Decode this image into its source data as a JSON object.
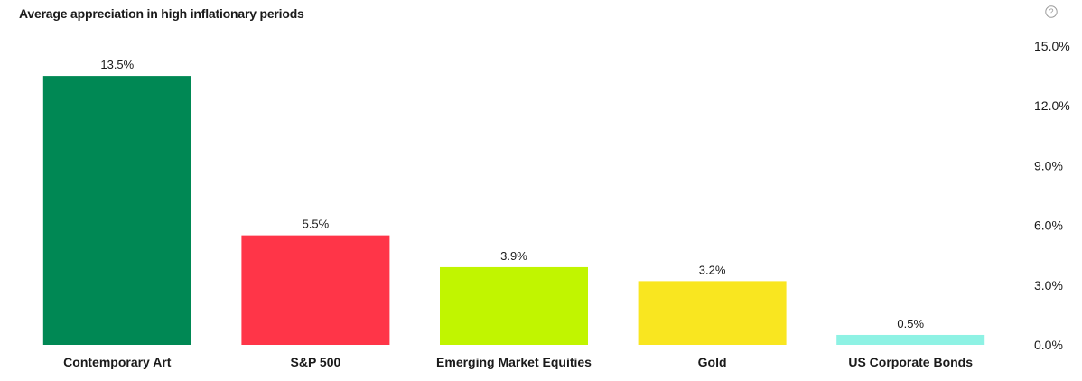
{
  "title": "Average appreciation in high inflationary periods",
  "help_icon": "help-circle-icon",
  "chart_data": {
    "type": "bar",
    "title": "Average appreciation in high inflationary periods",
    "categories": [
      "Contemporary Art",
      "S&P 500",
      "Emerging Market Equities",
      "Gold",
      "US Corporate Bonds"
    ],
    "values": [
      13.5,
      5.5,
      3.9,
      3.2,
      0.5
    ],
    "value_labels": [
      "13.5%",
      "5.5%",
      "3.9%",
      "3.2%",
      "0.5%"
    ],
    "colors": [
      "#008854",
      "#ff3548",
      "#c1f500",
      "#f9e620",
      "#8ef2e4"
    ],
    "ylim": [
      0,
      15
    ],
    "y_ticks": [
      0,
      3,
      6,
      9,
      12,
      15
    ],
    "y_tick_labels": [
      "0.0%",
      "3.0%",
      "6.0%",
      "9.0%",
      "12.0%",
      "15.0%"
    ],
    "y_axis_position": "right",
    "grid": false,
    "legend": "none",
    "xlabel": "",
    "ylabel": ""
  }
}
